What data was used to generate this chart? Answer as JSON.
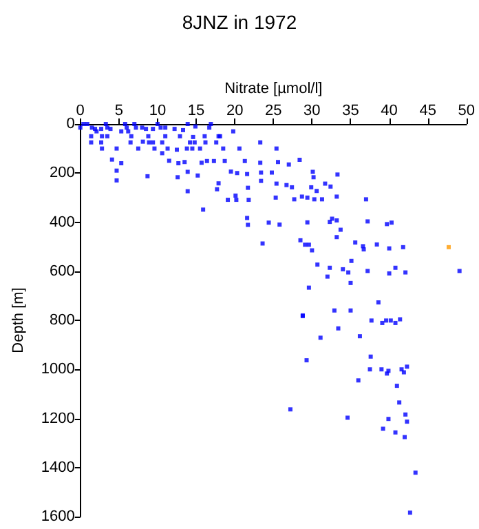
{
  "chart_data": {
    "type": "scatter",
    "title": "8JNZ in 1972",
    "xlabel": "Nitrate [µmol/l]",
    "ylabel": "Depth [m]",
    "xlim": [
      0,
      50
    ],
    "xticks": [
      0,
      5,
      10,
      15,
      20,
      25,
      30,
      35,
      40,
      45,
      50
    ],
    "ylim": [
      1600,
      0
    ],
    "yticks": [
      0,
      200,
      400,
      600,
      800,
      1000,
      1200,
      1400,
      1600
    ],
    "grid": false,
    "marker": "square",
    "series": [
      {
        "color": "#0000ff",
        "x": [
          0,
          0.4,
          0.9,
          1.5,
          1.4,
          1.4,
          1.9,
          2.1,
          2.7,
          2.8,
          2.7,
          2.8,
          3.3,
          3.5,
          3.5,
          3.9,
          4.1,
          4.7,
          4.7,
          4.7,
          5.3,
          5.3,
          5.8,
          6,
          6.2,
          6.6,
          6.5,
          7,
          7.2,
          7.5,
          8,
          8.1,
          8.5,
          8.7,
          8.8,
          8.9,
          9.4,
          9.4,
          9.6,
          10,
          10.4,
          10.6,
          10.6,
          11,
          11,
          11.3,
          11.5,
          12.2,
          12.5,
          12.6,
          12.7,
          12.9,
          13.3,
          13.5,
          13.8,
          13.9,
          13.9,
          13.9,
          14.2,
          14.5,
          14.6,
          14.8,
          14.9,
          15.2,
          15.5,
          15.7,
          15.9,
          16.1,
          16.2,
          16.4,
          16.7,
          16.9,
          17.3,
          17.6,
          17.9,
          17.9,
          17.7,
          18.1,
          18.5,
          18.7,
          19.1,
          19.5,
          19.8,
          20.1,
          20.2,
          20.3,
          20.6,
          21.3,
          21.6,
          21.7,
          21.8,
          21.6,
          21.7,
          23.3,
          23.3,
          23.4,
          23.4,
          23.6,
          25.4,
          28.4,
          25.6,
          27,
          24.8,
          25.4,
          26.7,
          27.4,
          30.1,
          30.2,
          30.6,
          29.9,
          28.7,
          29.4,
          30.3,
          31.3,
          31.7,
          32.4,
          33.3,
          33.2,
          25.3,
          27.7,
          24.4,
          25.8,
          29.4,
          32.3,
          32.6,
          33.2,
          33.7,
          33.2,
          37,
          37.2,
          39.7,
          40.3,
          28.5,
          29.1,
          29.6,
          30,
          35.6,
          36.6,
          36.7,
          38.4,
          40,
          41.8,
          35.1,
          30.7,
          32.3,
          34,
          34.7,
          32,
          37.2,
          40,
          40.8,
          42.1,
          49.1,
          35,
          29.6,
          38.6,
          28.8,
          32.9,
          35,
          37.7,
          39.1,
          39.6,
          40.2,
          40.8,
          41.4,
          33.4,
          28.8,
          31.1,
          36.2,
          29.3,
          37.6,
          36,
          37.5,
          39,
          39.9,
          39.7,
          41.6,
          41.9,
          42.3,
          41,
          41.3,
          42.1,
          27.2,
          34.6,
          39.9,
          42.3,
          39.2,
          40.8,
          42,
          43.4,
          42.7
        ],
        "values": [
          15,
          0,
          0,
          15,
          50,
          75,
          20,
          30,
          20,
          50,
          75,
          100,
          0,
          15,
          50,
          20,
          145,
          100,
          190,
          230,
          160,
          30,
          0,
          15,
          30,
          50,
          75,
          0,
          15,
          100,
          15,
          72,
          20,
          213,
          50,
          75,
          75,
          20,
          100,
          0,
          15,
          75,
          119,
          15,
          50,
          100,
          150,
          20,
          105,
          217,
          160,
          50,
          25,
          155,
          100,
          0,
          195,
          274,
          75,
          100,
          53,
          75,
          10,
          210,
          100,
          158,
          349,
          50,
          75,
          151,
          15,
          0,
          151,
          75,
          50,
          242,
          266,
          50,
          100,
          151,
          309,
          194,
          30,
          292,
          309,
          200,
          100,
          151,
          204,
          260,
          309,
          383,
          411,
          75,
          158,
          198,
          232,
          487,
          100,
          146,
          155,
          165,
          198,
          243,
          249,
          258,
          195,
          217,
          273,
          258,
          296,
          300,
          307,
          307,
          243,
          255,
          206,
          296,
          300,
          307,
          402,
          410,
          401,
          399,
          386,
          393,
          431,
          461,
          307,
          397,
          408,
          402,
          474,
          492,
          492,
          515,
          483,
          498,
          511,
          491,
          507,
          502,
          558,
          573,
          586,
          592,
          605,
          622,
          599,
          609,
          586,
          605,
          599,
          648,
          667,
          727,
          783,
          760,
          760,
          801,
          811,
          801,
          801,
          811,
          796,
          833,
          780,
          871,
          865,
          963,
          948,
          1045,
          1000,
          1000,
          1006,
          1017,
          1000,
          1012,
          989,
          1067,
          1135,
          1184,
          1163,
          1197,
          1202,
          1213,
          1242,
          1257,
          1276,
          1421,
          1584
        ]
      },
      {
        "color": "#ff9900",
        "x": [
          47.7
        ],
        "values": [
          502
        ]
      }
    ]
  }
}
